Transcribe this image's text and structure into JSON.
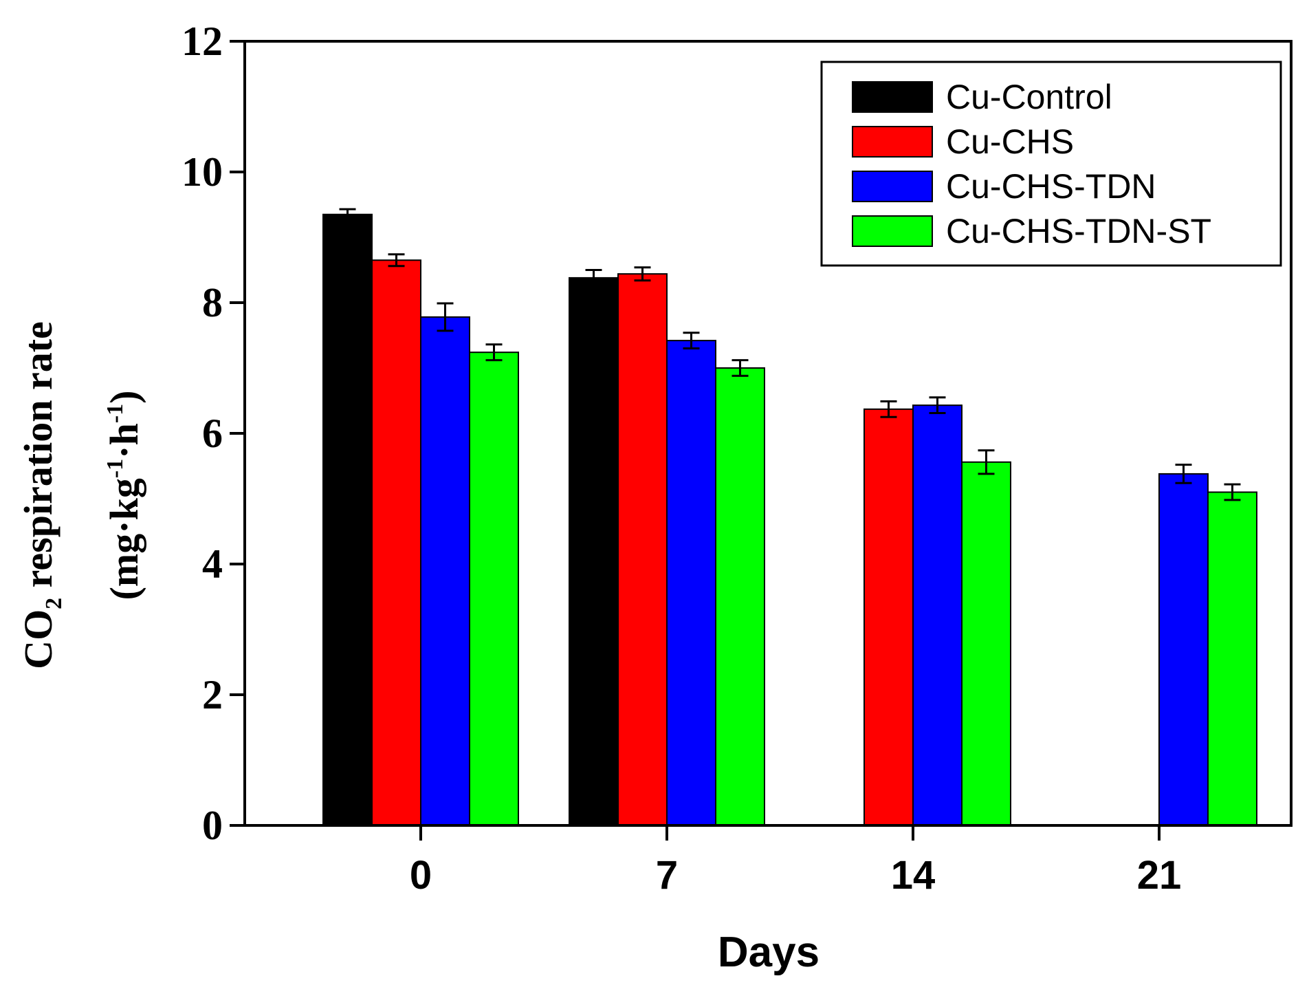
{
  "chart_data": {
    "type": "bar",
    "title": "",
    "xlabel": "Days",
    "ylabel": {
      "line1_main": "CO",
      "line1_sub": "2",
      "line1_rest": " respiration rate",
      "line2_open": "(mg·kg",
      "line2_sup1": "-1",
      "line2_mid": "·h",
      "line2_sup2": "-1",
      "line2_close": ")"
    },
    "ylim": [
      0,
      12
    ],
    "yticks": [
      "0",
      "2",
      "4",
      "6",
      "8",
      "10",
      "12"
    ],
    "categories": [
      "0",
      "7",
      "14",
      "21"
    ],
    "legend_position": "top-right",
    "series": [
      {
        "name": "Cu-Control",
        "color": "#000000",
        "values": [
          9.35,
          8.38,
          null,
          null
        ],
        "errors": [
          0.08,
          0.12,
          null,
          null
        ]
      },
      {
        "name": "Cu-CHS",
        "color": "#ff0000",
        "values": [
          8.65,
          8.44,
          6.37,
          null
        ],
        "errors": [
          0.09,
          0.1,
          0.12,
          null
        ]
      },
      {
        "name": "Cu-CHS-TDN",
        "color": "#0000ff",
        "values": [
          7.78,
          7.42,
          6.43,
          5.38
        ],
        "errors": [
          0.21,
          0.12,
          0.12,
          0.14
        ]
      },
      {
        "name": "Cu-CHS-TDN-ST",
        "color": "#00ff00",
        "values": [
          7.24,
          7.0,
          5.56,
          5.1
        ],
        "errors": [
          0.12,
          0.12,
          0.18,
          0.12
        ]
      }
    ]
  }
}
